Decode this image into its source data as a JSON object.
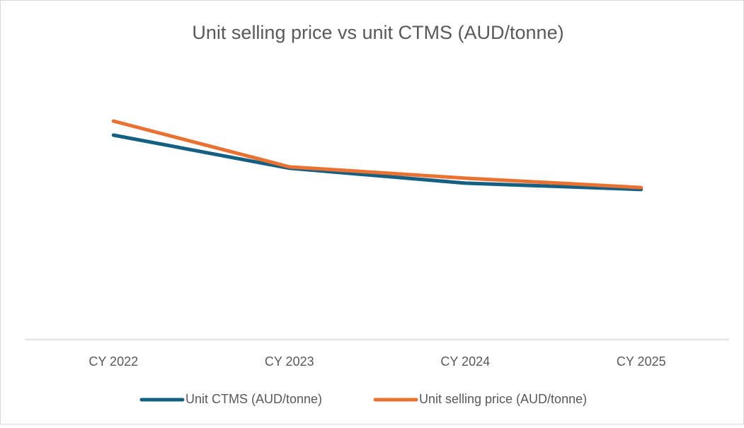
{
  "chart_data": {
    "type": "line",
    "title": "Unit selling price vs unit CTMS (AUD/tonne)",
    "categories": [
      "CY 2022",
      "CY 2023",
      "CY 2024",
      "CY 2025"
    ],
    "series": [
      {
        "name": "Unit CTMS (AUD/tonne)",
        "color": "#156082",
        "values": [
          74.1,
          62.1,
          56.7,
          54.4
        ]
      },
      {
        "name": "Unit selling price (AUD/tonne)",
        "color": "#e97132",
        "values": [
          79.2,
          62.6,
          58.5,
          55.1
        ]
      }
    ],
    "ylim": [
      0,
      100
    ],
    "grid": false,
    "legend": "bottom"
  }
}
